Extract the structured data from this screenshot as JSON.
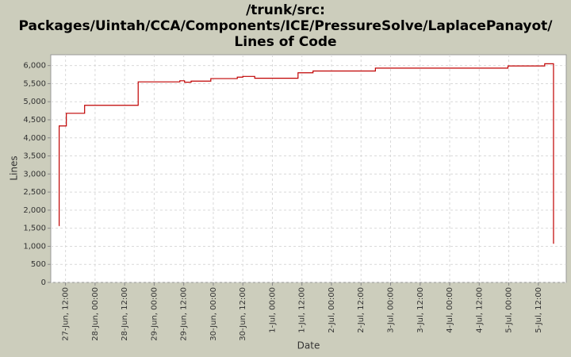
{
  "chart_data": {
    "type": "line",
    "title": [
      "/trunk/src:",
      "Packages/Uintah/CCA/Components/ICE/PressureSolve/LaplacePanayot/",
      "Lines of Code"
    ],
    "x_label": "Date",
    "y_label": "Lines",
    "step": true,
    "color": "#c00000",
    "grid": true,
    "x": [
      "27-Jun, 09:20",
      "27-Jun, 09:25",
      "27-Jun, 12:20",
      "27-Jun, 19:45",
      "28-Jun, 17:30",
      "29-Jun, 10:25",
      "29-Jun, 12:20",
      "29-Jun, 15:00",
      "29-Jun, 23:00",
      "30-Jun, 09:45",
      "30-Jun, 12:00",
      "30-Jun, 16:50",
      "1-Jul, 10:25",
      "1-Jul, 16:30",
      "2-Jul, 17:50",
      "4-Jul, 23:40",
      "5-Jul, 14:35",
      "5-Jul, 18:10"
    ],
    "values": [
      1570,
      4330,
      4680,
      4900,
      5550,
      5580,
      5540,
      5570,
      5640,
      5680,
      5700,
      5650,
      5800,
      5850,
      5930,
      5990,
      6050,
      1070
    ],
    "xlim": [
      "27-Jun, 06:00",
      "5-Jul, 23:20"
    ],
    "xticks": [
      "27-Jun, 12:00",
      "28-Jun, 00:00",
      "28-Jun, 12:00",
      "29-Jun, 00:00",
      "29-Jun, 12:00",
      "30-Jun, 00:00",
      "30-Jun, 12:00",
      "1-Jul, 00:00",
      "1-Jul, 12:00",
      "2-Jul, 00:00",
      "2-Jul, 12:00",
      "3-Jul, 00:00",
      "3-Jul, 12:00",
      "4-Jul, 00:00",
      "4-Jul, 12:00",
      "5-Jul, 00:00",
      "5-Jul, 12:00"
    ],
    "ylim": [
      0,
      6300
    ],
    "yticks": [
      0,
      500,
      {
        "value": 1000,
        "label": "1,000"
      },
      {
        "value": 1500,
        "label": "1,500"
      },
      {
        "value": 2000,
        "label": "2,000"
      },
      {
        "value": 2500,
        "label": "2,500"
      },
      {
        "value": 3000,
        "label": "3,000"
      },
      {
        "value": 3500,
        "label": "3,500"
      },
      {
        "value": 4000,
        "label": "4,000"
      },
      {
        "value": 4500,
        "label": "4,500"
      },
      {
        "value": 5000,
        "label": "5,000"
      },
      {
        "value": 5500,
        "label": "5,500"
      },
      {
        "value": 6000,
        "label": "6,000"
      }
    ]
  }
}
